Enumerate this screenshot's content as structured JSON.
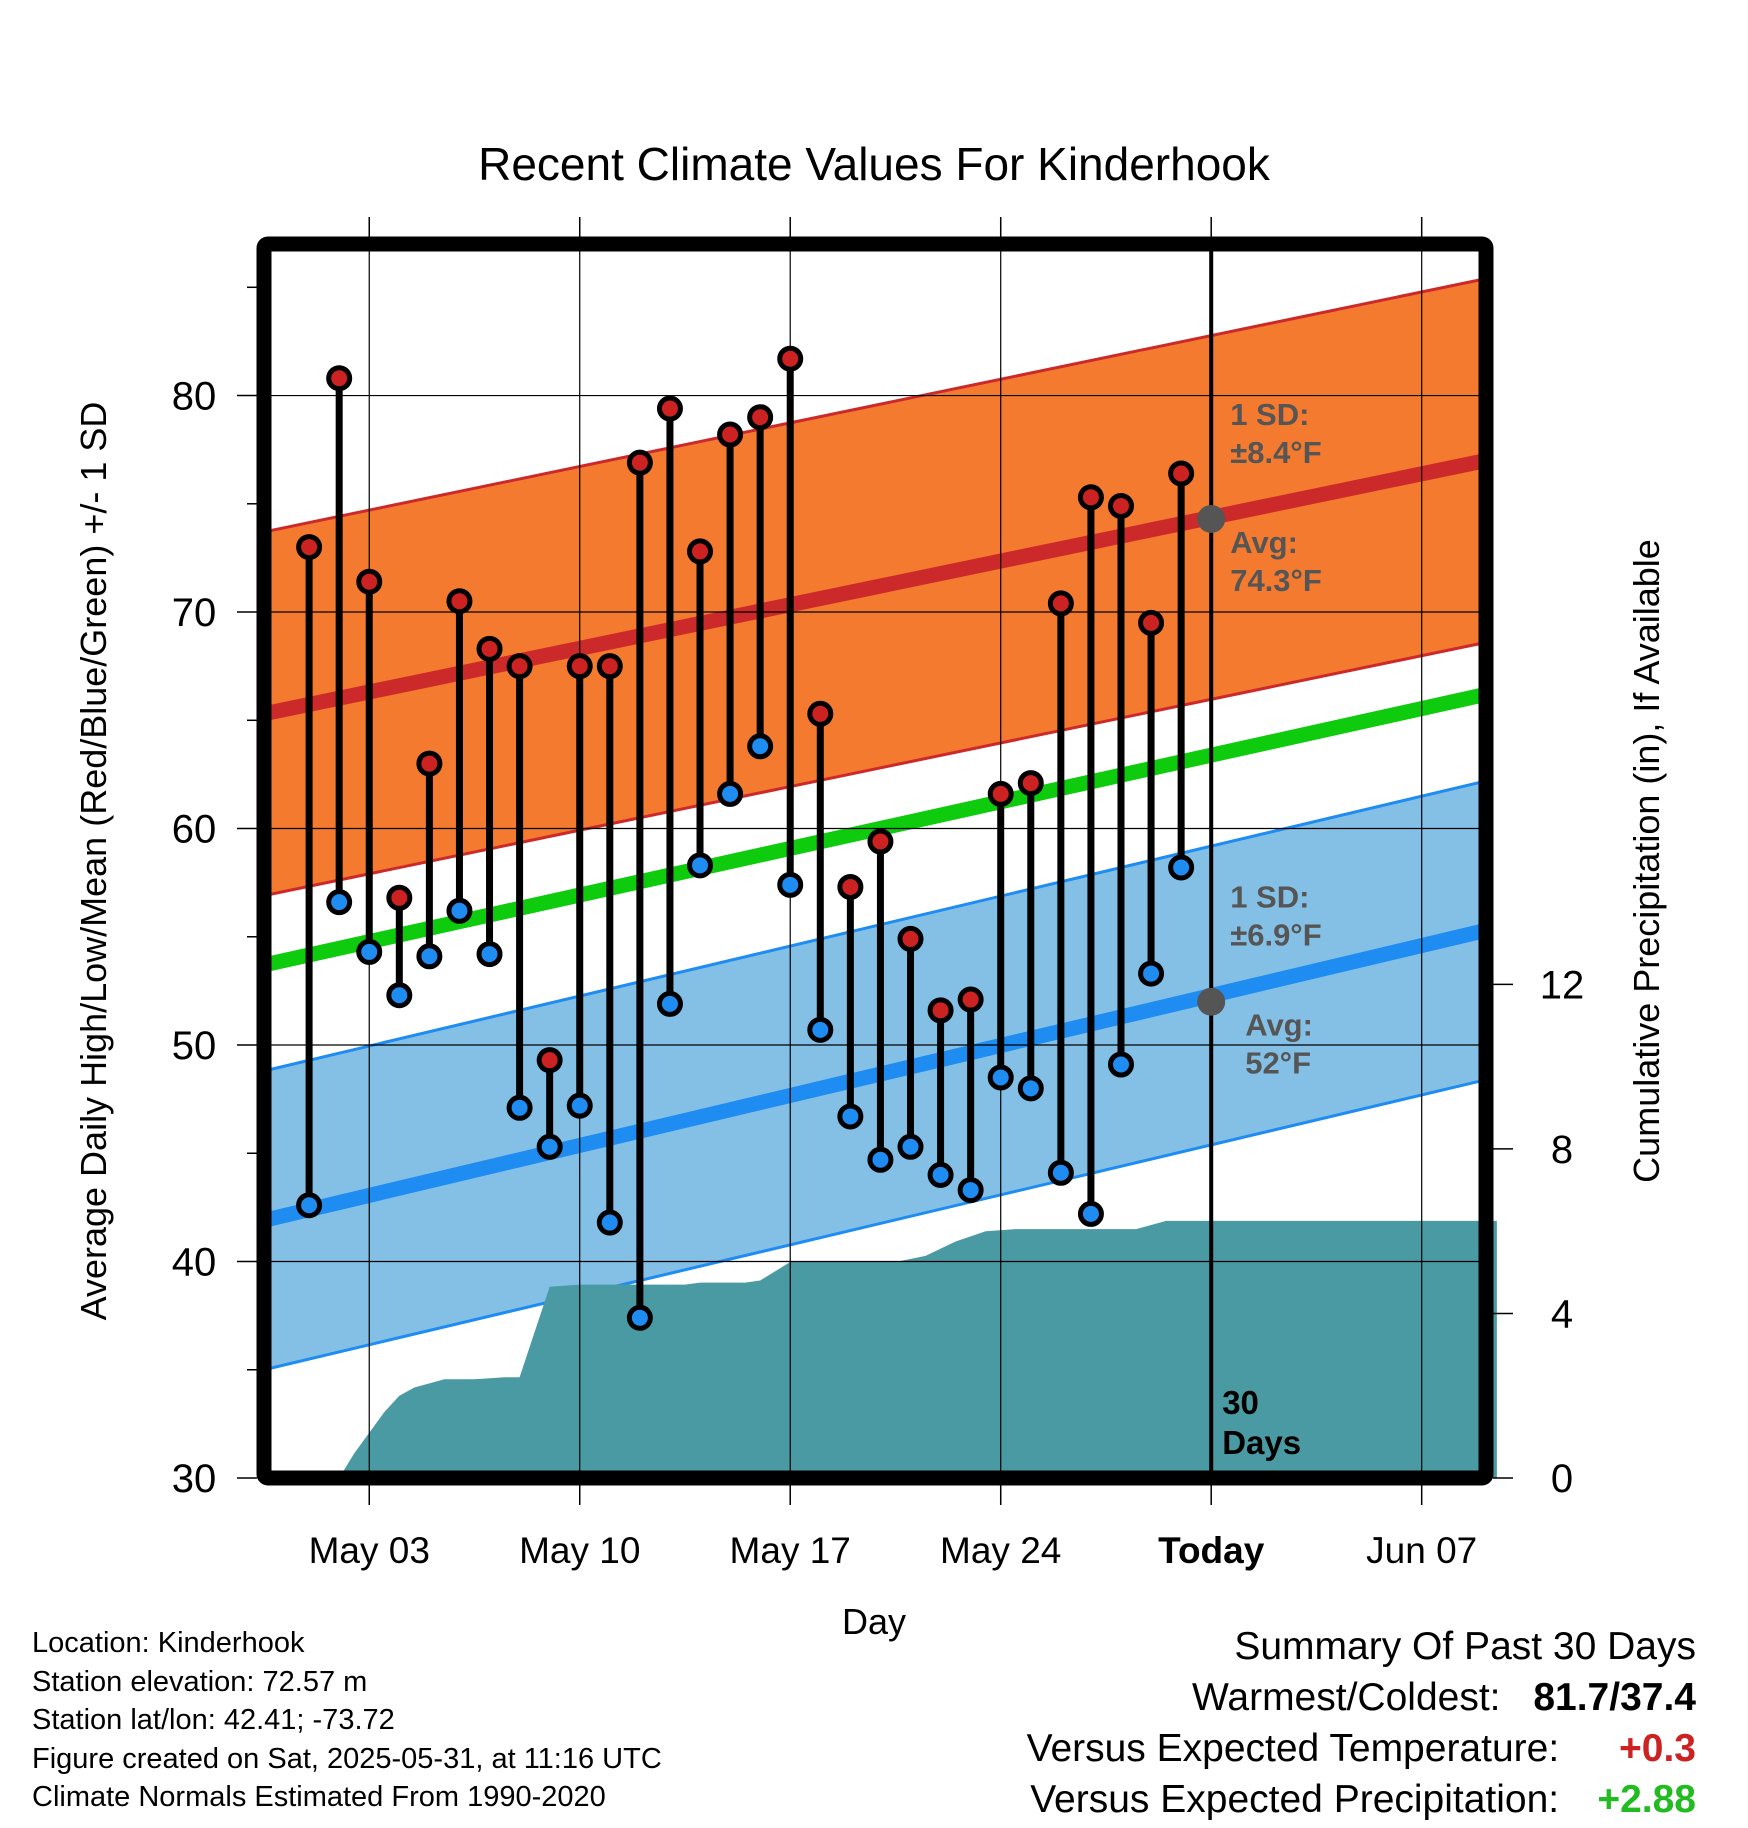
{
  "chart_data": {
    "type": "line",
    "title": "Recent Climate Values For Kinderhook",
    "xlabel": "Day",
    "ylabel": "Average Daily High/Low/Mean (Red/Blue/Green) +/- 1 SD",
    "y2label": "Cumulative Precipitation (in), If Available",
    "x_tick_labels": [
      "May 03",
      "May 10",
      "May 17",
      "May 24",
      "Today",
      "Jun 07"
    ],
    "x_tick_dates": [
      "2025-05-03",
      "2025-05-10",
      "2025-05-17",
      "2025-05-24",
      "2025-05-31",
      "2025-06-07"
    ],
    "xlim": [
      "2025-04-29 12:00",
      "2025-06-09 12:00"
    ],
    "ylim": [
      30,
      87
    ],
    "y_ticks": [
      30,
      40,
      50,
      60,
      70,
      80
    ],
    "y2lim": [
      0,
      30
    ],
    "y2_ticks": [
      0,
      4,
      8,
      12
    ],
    "grid": true,
    "today": "2025-05-31",
    "today_label": "Today",
    "window_label": [
      "30",
      "Days"
    ],
    "dates": [
      "2025-05-01",
      "2025-05-02",
      "2025-05-03",
      "2025-05-04",
      "2025-05-05",
      "2025-05-06",
      "2025-05-07",
      "2025-05-08",
      "2025-05-09",
      "2025-05-10",
      "2025-05-11",
      "2025-05-12",
      "2025-05-13",
      "2025-05-14",
      "2025-05-15",
      "2025-05-16",
      "2025-05-17",
      "2025-05-18",
      "2025-05-19",
      "2025-05-20",
      "2025-05-21",
      "2025-05-22",
      "2025-05-23",
      "2025-05-24",
      "2025-05-25",
      "2025-05-26",
      "2025-05-27",
      "2025-05-28",
      "2025-05-29",
      "2025-05-30"
    ],
    "daily_high": [
      73.0,
      80.8,
      71.4,
      56.8,
      63.0,
      70.5,
      68.3,
      67.5,
      49.3,
      67.5,
      67.5,
      76.9,
      79.4,
      72.8,
      78.2,
      79.0,
      81.7,
      65.3,
      57.3,
      59.4,
      54.9,
      51.6,
      52.1,
      61.6,
      62.1,
      70.4,
      75.3,
      74.9,
      69.5,
      76.4
    ],
    "daily_low": [
      42.6,
      56.6,
      54.3,
      52.3,
      54.1,
      56.2,
      54.2,
      47.1,
      45.3,
      47.2,
      41.8,
      37.4,
      51.9,
      58.3,
      61.6,
      63.8,
      57.4,
      50.7,
      46.7,
      44.7,
      45.3,
      44.0,
      43.3,
      48.5,
      48.0,
      44.1,
      42.2,
      49.1,
      53.3,
      58.2
    ],
    "normals": {
      "high_avg": {
        "start": 65.3,
        "end": 77.0
      },
      "high_sd": 8.4,
      "low_avg": {
        "start": 41.9,
        "end": 55.3
      },
      "low_sd": 6.9,
      "mean_avg": {
        "start": 53.7,
        "end": 66.2
      }
    },
    "cumulative_precip": [
      [
        "2025-04-29 12:00",
        0
      ],
      [
        "2025-05-02 00:00",
        0
      ],
      [
        "2025-05-02 12:00",
        0.6
      ],
      [
        "2025-05-03 12:00",
        1.6
      ],
      [
        "2025-05-04 00:00",
        2.0
      ],
      [
        "2025-05-04 12:00",
        2.2
      ],
      [
        "2025-05-05 12:00",
        2.4
      ],
      [
        "2025-05-06 12:00",
        2.4
      ],
      [
        "2025-05-07 12:00",
        2.45
      ],
      [
        "2025-05-08 00:00",
        2.45
      ],
      [
        "2025-05-09 00:00",
        4.65
      ],
      [
        "2025-05-10 00:00",
        4.7
      ],
      [
        "2025-05-13 12:00",
        4.7
      ],
      [
        "2025-05-14 00:00",
        4.75
      ],
      [
        "2025-05-15 12:00",
        4.75
      ],
      [
        "2025-05-16 00:00",
        4.8
      ],
      [
        "2025-05-17 00:00",
        5.25
      ],
      [
        "2025-05-18 12:00",
        5.25
      ],
      [
        "2025-05-20 12:00",
        5.25
      ],
      [
        "2025-05-21 12:00",
        5.4
      ],
      [
        "2025-05-22 12:00",
        5.75
      ],
      [
        "2025-05-23 12:00",
        6.0
      ],
      [
        "2025-05-24 12:00",
        6.05
      ],
      [
        "2025-05-28 12:00",
        6.05
      ],
      [
        "2025-05-29 12:00",
        6.25
      ],
      [
        "2025-06-09 12:00",
        6.25
      ]
    ]
  },
  "annotations": {
    "high": {
      "sd_label": "1 SD:",
      "sd_value": "±8.4°F",
      "avg_label": "Avg:",
      "avg_value": "74.3°F",
      "avg_temp": 74.3
    },
    "low": {
      "sd_label": "1 SD:",
      "sd_value": "±6.9°F",
      "avg_label": "Avg:",
      "avg_value": "52°F",
      "avg_temp": 52.0
    }
  },
  "info": {
    "location": "Location: Kinderhook",
    "elevation": "Station elevation: 72.57 m",
    "latlon": "Station lat/lon: 42.41; -73.72",
    "created": "Figure created on Sat, 2025-05-31, at 11:16 UTC",
    "normals": "Climate Normals Estimated From 1990-2020"
  },
  "summary": {
    "title": "Summary Of Past 30 Days",
    "warmest_coldest_label": "Warmest/Coldest:",
    "warmest_coldest_value": "81.7/37.4",
    "temp_label": "Versus Expected Temperature:",
    "temp_value": "+0.3",
    "precip_label": "Versus Expected Precipitation:",
    "precip_value": "+2.88"
  },
  "colors": {
    "high_band": "#f47a2f",
    "high_line": "#cc2a2a",
    "low_band": "#84c0e6",
    "low_line": "#1e8cf0",
    "mean_line": "#0ecb0e",
    "precip": "#4a9aa4",
    "high_marker": "#cc2222",
    "low_marker": "#1e8cf0",
    "annotation": "#555555",
    "temp_anomaly": "#cc2222",
    "precip_anomaly": "#22bb22"
  }
}
